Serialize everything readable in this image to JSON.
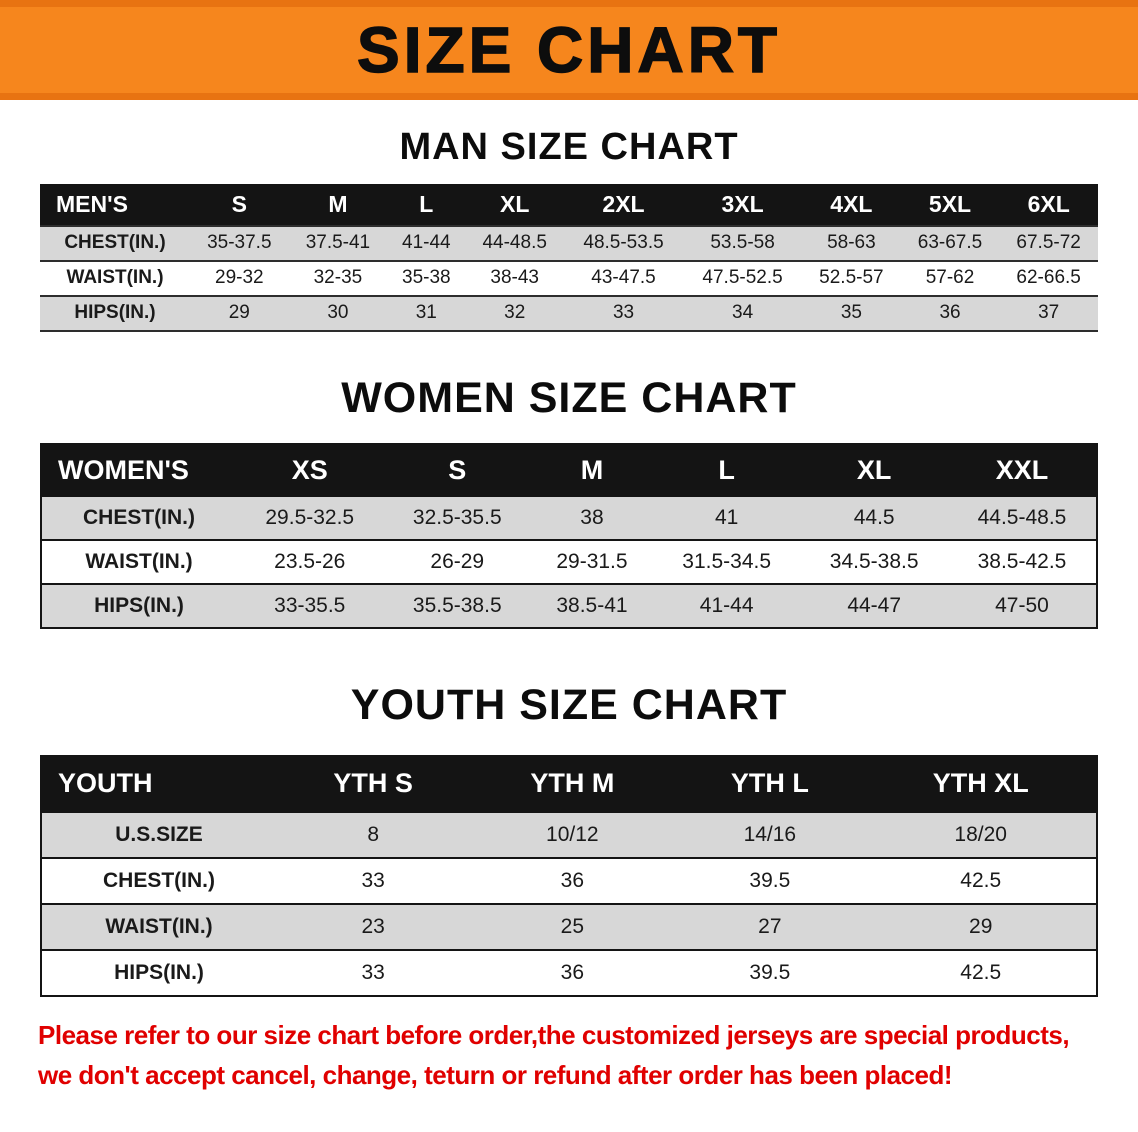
{
  "banner": {
    "title": "SIZE CHART",
    "bg_color": "#f6861d",
    "edge_color": "#e87311",
    "text_color": "#0d0d0d"
  },
  "sections": {
    "men": {
      "heading": "MAN SIZE CHART",
      "table": {
        "header": [
          "MEN'S",
          "S",
          "M",
          "L",
          "XL",
          "2XL",
          "3XL",
          "4XL",
          "5XL",
          "6XL"
        ],
        "rows": [
          [
            "CHEST(IN.)",
            "35-37.5",
            "37.5-41",
            "41-44",
            "44-48.5",
            "48.5-53.5",
            "53.5-58",
            "58-63",
            "63-67.5",
            "67.5-72"
          ],
          [
            "WAIST(IN.)",
            "29-32",
            "32-35",
            "35-38",
            "38-43",
            "43-47.5",
            "47.5-52.5",
            "52.5-57",
            "57-62",
            "62-66.5"
          ],
          [
            "HIPS(IN.)",
            "29",
            "30",
            "31",
            "32",
            "33",
            "34",
            "35",
            "36",
            "37"
          ]
        ]
      }
    },
    "women": {
      "heading": "WOMEN SIZE CHART",
      "table": {
        "header": [
          "WOMEN'S",
          "XS",
          "S",
          "M",
          "L",
          "XL",
          "XXL"
        ],
        "rows": [
          [
            "CHEST(IN.)",
            "29.5-32.5",
            "32.5-35.5",
            "38",
            "41",
            "44.5",
            "44.5-48.5"
          ],
          [
            "WAIST(IN.)",
            "23.5-26",
            "26-29",
            "29-31.5",
            "31.5-34.5",
            "34.5-38.5",
            "38.5-42.5"
          ],
          [
            "HIPS(IN.)",
            "33-35.5",
            "35.5-38.5",
            "38.5-41",
            "41-44",
            "44-47",
            "47-50"
          ]
        ]
      }
    },
    "youth": {
      "heading": "YOUTH SIZE CHART",
      "table": {
        "header": [
          "YOUTH",
          "YTH S",
          "YTH M",
          "YTH L",
          "YTH XL"
        ],
        "rows": [
          [
            "U.S.SIZE",
            "8",
            "10/12",
            "14/16",
            "18/20"
          ],
          [
            "CHEST(IN.)",
            "33",
            "36",
            "39.5",
            "42.5"
          ],
          [
            "WAIST(IN.)",
            "23",
            "25",
            "27",
            "29"
          ],
          [
            "HIPS(IN.)",
            "33",
            "36",
            "39.5",
            "42.5"
          ]
        ]
      }
    }
  },
  "table_style": {
    "header_bg": "#141414",
    "header_text": "#ffffff",
    "striped_row_bg": "#d7d7d7"
  },
  "disclaimer": {
    "line1": "Please refer to our size chart before order,the customized jerseys are special products,",
    "line2": "we don't accept cancel, change, teturn or refund after order has been placed!",
    "color": "#e00000"
  }
}
